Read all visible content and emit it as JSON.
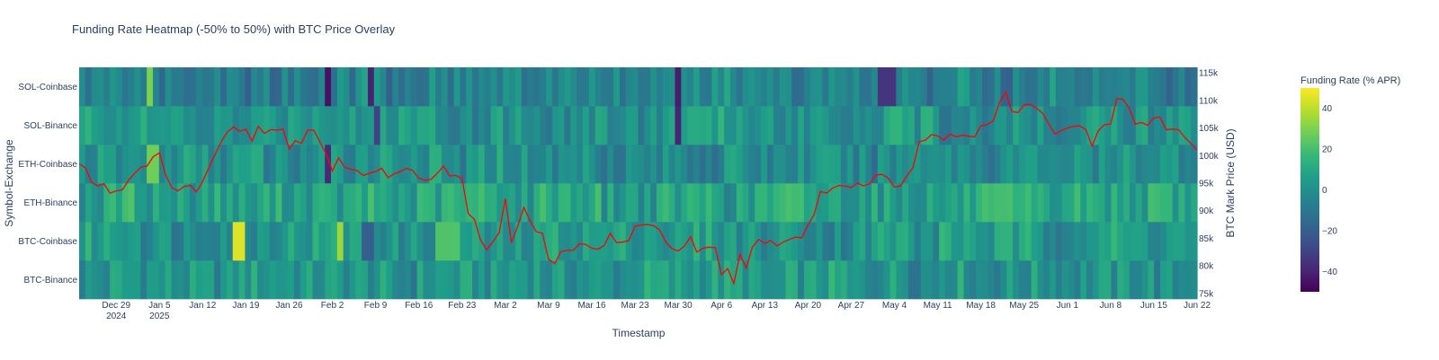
{
  "chart_data": {
    "type": "heatmap",
    "title": "Funding Rate Heatmap (-50% to 50%) with BTC Price Overlay",
    "xlabel": "Timestamp",
    "ylabel": "Symbol-Exchange",
    "y2label": "BTC Mark Price (USD)",
    "x_range": [
      "2024-12-23",
      "2025-06-22"
    ],
    "x_ticks": [
      {
        "date": "2024-12-29",
        "label": "Dec 29",
        "sub": "2024"
      },
      {
        "date": "2025-01-05",
        "label": "Jan 5",
        "sub": "2025"
      },
      {
        "date": "2025-01-12",
        "label": "Jan 12"
      },
      {
        "date": "2025-01-19",
        "label": "Jan 19"
      },
      {
        "date": "2025-01-26",
        "label": "Jan 26"
      },
      {
        "date": "2025-02-02",
        "label": "Feb 2"
      },
      {
        "date": "2025-02-09",
        "label": "Feb 9"
      },
      {
        "date": "2025-02-16",
        "label": "Feb 16"
      },
      {
        "date": "2025-02-23",
        "label": "Feb 23"
      },
      {
        "date": "2025-03-02",
        "label": "Mar 2"
      },
      {
        "date": "2025-03-09",
        "label": "Mar 9"
      },
      {
        "date": "2025-03-16",
        "label": "Mar 16"
      },
      {
        "date": "2025-03-23",
        "label": "Mar 23"
      },
      {
        "date": "2025-03-30",
        "label": "Mar 30"
      },
      {
        "date": "2025-04-06",
        "label": "Apr 6"
      },
      {
        "date": "2025-04-13",
        "label": "Apr 13"
      },
      {
        "date": "2025-04-20",
        "label": "Apr 20"
      },
      {
        "date": "2025-04-27",
        "label": "Apr 27"
      },
      {
        "date": "2025-05-04",
        "label": "May 4"
      },
      {
        "date": "2025-05-11",
        "label": "May 11"
      },
      {
        "date": "2025-05-18",
        "label": "May 18"
      },
      {
        "date": "2025-05-25",
        "label": "May 25"
      },
      {
        "date": "2025-06-01",
        "label": "Jun 1"
      },
      {
        "date": "2025-06-08",
        "label": "Jun 8"
      },
      {
        "date": "2025-06-15",
        "label": "Jun 15"
      },
      {
        "date": "2025-06-22",
        "label": "Jun 22"
      }
    ],
    "rows": [
      "BTC-Binance",
      "BTC-Coinbase",
      "ETH-Binance",
      "ETH-Coinbase",
      "SOL-Binance",
      "SOL-Coinbase"
    ],
    "row_base": [
      2,
      3,
      8,
      0,
      2,
      -6
    ],
    "highlights": [
      {
        "row": "BTC-Coinbase",
        "dates": [
          "2025-01-17",
          "2025-01-18"
        ],
        "value": 45
      },
      {
        "row": "BTC-Coinbase",
        "dates": [
          "2025-02-03"
        ],
        "value": 35
      },
      {
        "row": "BTC-Coinbase",
        "dates": [
          "2025-02-19",
          "2025-02-20",
          "2025-02-21",
          "2025-02-22"
        ],
        "value": 22
      },
      {
        "row": "BTC-Coinbase",
        "dates": [
          "2025-02-07",
          "2025-02-08"
        ],
        "value": -20
      },
      {
        "row": "SOL-Coinbase",
        "dates": [
          "2025-02-01"
        ],
        "value": -45
      },
      {
        "row": "SOL-Coinbase",
        "dates": [
          "2025-02-08"
        ],
        "value": -40
      },
      {
        "row": "SOL-Coinbase",
        "dates": [
          "2025-03-30"
        ],
        "value": -42
      },
      {
        "row": "SOL-Coinbase",
        "dates": [
          "2025-05-02",
          "2025-05-03",
          "2025-05-04"
        ],
        "value": -35
      },
      {
        "row": "SOL-Binance",
        "dates": [
          "2025-03-30"
        ],
        "value": -40
      },
      {
        "row": "SOL-Binance",
        "dates": [
          "2025-02-09"
        ],
        "value": -30
      },
      {
        "row": "ETH-Coinbase",
        "dates": [
          "2025-02-01"
        ],
        "value": -38
      },
      {
        "row": "SOL-Coinbase",
        "dates": [
          "2025-01-03"
        ],
        "value": 30
      },
      {
        "row": "ETH-Coinbase",
        "dates": [
          "2025-01-03",
          "2025-01-04"
        ],
        "value": 28
      }
    ],
    "colorbar": {
      "title": "Funding Rate (% APR)",
      "range": [
        -50,
        50
      ],
      "ticks": [
        40,
        20,
        0,
        -20,
        -40
      ],
      "colorscale": "Viridis"
    },
    "y2_range": [
      74000,
      116000
    ],
    "y2_ticks": [
      {
        "value": 75000,
        "label": "75k"
      },
      {
        "value": 80000,
        "label": "80k"
      },
      {
        "value": 85000,
        "label": "85k"
      },
      {
        "value": 90000,
        "label": "90k"
      },
      {
        "value": 95000,
        "label": "95k"
      },
      {
        "value": 100000,
        "label": "100k"
      },
      {
        "value": 105000,
        "label": "105k"
      },
      {
        "value": 110000,
        "label": "110k"
      },
      {
        "value": 115000,
        "label": "115k"
      }
    ],
    "price_series": {
      "color": "#ff0000",
      "points": [
        [
          "2024-12-23",
          98500
        ],
        [
          "2024-12-24",
          97800
        ],
        [
          "2024-12-25",
          95200
        ],
        [
          "2024-12-26",
          94500
        ],
        [
          "2024-12-27",
          94900
        ],
        [
          "2024-12-28",
          93200
        ],
        [
          "2024-12-29",
          93600
        ],
        [
          "2024-12-30",
          93800
        ],
        [
          "2024-12-31",
          95500
        ],
        [
          "2025-01-01",
          96800
        ],
        [
          "2025-01-02",
          97900
        ],
        [
          "2025-01-03",
          98100
        ],
        [
          "2025-01-04",
          99800
        ],
        [
          "2025-01-05",
          100500
        ],
        [
          "2025-01-06",
          96500
        ],
        [
          "2025-01-07",
          94200
        ],
        [
          "2025-01-08",
          93600
        ],
        [
          "2025-01-09",
          94400
        ],
        [
          "2025-01-10",
          94600
        ],
        [
          "2025-01-11",
          93400
        ],
        [
          "2025-01-12",
          95300
        ],
        [
          "2025-01-13",
          97800
        ],
        [
          "2025-01-14",
          100200
        ],
        [
          "2025-01-15",
          102500
        ],
        [
          "2025-01-16",
          104300
        ],
        [
          "2025-01-17",
          105200
        ],
        [
          "2025-01-18",
          104400
        ],
        [
          "2025-01-19",
          104800
        ],
        [
          "2025-01-20",
          102600
        ],
        [
          "2025-01-21",
          105300
        ],
        [
          "2025-01-22",
          104000
        ],
        [
          "2025-01-23",
          104700
        ],
        [
          "2025-01-24",
          104600
        ],
        [
          "2025-01-25",
          104800
        ],
        [
          "2025-01-26",
          101200
        ],
        [
          "2025-01-27",
          102700
        ],
        [
          "2025-01-28",
          102200
        ],
        [
          "2025-01-29",
          104600
        ],
        [
          "2025-01-30",
          104600
        ],
        [
          "2025-01-31",
          102400
        ],
        [
          "2025-02-01",
          100300
        ],
        [
          "2025-02-02",
          97200
        ],
        [
          "2025-02-03",
          99600
        ],
        [
          "2025-02-04",
          97900
        ],
        [
          "2025-02-05",
          97500
        ],
        [
          "2025-02-06",
          97300
        ],
        [
          "2025-02-07",
          96400
        ],
        [
          "2025-02-08",
          96800
        ],
        [
          "2025-02-09",
          97100
        ],
        [
          "2025-02-10",
          97700
        ],
        [
          "2025-02-11",
          96000
        ],
        [
          "2025-02-12",
          96700
        ],
        [
          "2025-02-13",
          97100
        ],
        [
          "2025-02-14",
          97700
        ],
        [
          "2025-02-15",
          97300
        ],
        [
          "2025-02-16",
          95900
        ],
        [
          "2025-02-17",
          95500
        ],
        [
          "2025-02-18",
          95700
        ],
        [
          "2025-02-19",
          96800
        ],
        [
          "2025-02-20",
          98100
        ],
        [
          "2025-02-21",
          96300
        ],
        [
          "2025-02-22",
          96400
        ],
        [
          "2025-02-23",
          95800
        ],
        [
          "2025-02-24",
          89500
        ],
        [
          "2025-02-25",
          88400
        ],
        [
          "2025-02-26",
          84700
        ],
        [
          "2025-02-27",
          82900
        ],
        [
          "2025-02-28",
          84400
        ],
        [
          "2025-03-01",
          86000
        ],
        [
          "2025-03-02",
          92200
        ],
        [
          "2025-03-03",
          84200
        ],
        [
          "2025-03-04",
          87200
        ],
        [
          "2025-03-05",
          90600
        ],
        [
          "2025-03-06",
          88200
        ],
        [
          "2025-03-07",
          86200
        ],
        [
          "2025-03-08",
          85900
        ],
        [
          "2025-03-09",
          81200
        ],
        [
          "2025-03-10",
          80400
        ],
        [
          "2025-03-11",
          82600
        ],
        [
          "2025-03-12",
          82800
        ],
        [
          "2025-03-13",
          82800
        ],
        [
          "2025-03-14",
          84000
        ],
        [
          "2025-03-15",
          83900
        ],
        [
          "2025-03-16",
          83200
        ],
        [
          "2025-03-17",
          83000
        ],
        [
          "2025-03-18",
          83700
        ],
        [
          "2025-03-19",
          85900
        ],
        [
          "2025-03-20",
          84200
        ],
        [
          "2025-03-21",
          84300
        ],
        [
          "2025-03-22",
          84600
        ],
        [
          "2025-03-23",
          87200
        ],
        [
          "2025-03-24",
          87400
        ],
        [
          "2025-03-25",
          87500
        ],
        [
          "2025-03-26",
          87300
        ],
        [
          "2025-03-27",
          86500
        ],
        [
          "2025-03-28",
          84300
        ],
        [
          "2025-03-29",
          83100
        ],
        [
          "2025-03-30",
          82700
        ],
        [
          "2025-03-31",
          83600
        ],
        [
          "2025-04-01",
          85300
        ],
        [
          "2025-04-02",
          82500
        ],
        [
          "2025-04-03",
          83200
        ],
        [
          "2025-04-04",
          83400
        ],
        [
          "2025-04-05",
          83300
        ],
        [
          "2025-04-06",
          78400
        ],
        [
          "2025-04-07",
          79500
        ],
        [
          "2025-04-08",
          76800
        ],
        [
          "2025-04-09",
          82100
        ],
        [
          "2025-04-10",
          79600
        ],
        [
          "2025-04-11",
          83400
        ],
        [
          "2025-04-12",
          84800
        ],
        [
          "2025-04-13",
          84100
        ],
        [
          "2025-04-14",
          84600
        ],
        [
          "2025-04-15",
          83600
        ],
        [
          "2025-04-16",
          84300
        ],
        [
          "2025-04-17",
          84800
        ],
        [
          "2025-04-18",
          85200
        ],
        [
          "2025-04-19",
          85100
        ],
        [
          "2025-04-20",
          87400
        ],
        [
          "2025-04-21",
          89300
        ],
        [
          "2025-04-22",
          93500
        ],
        [
          "2025-04-23",
          93200
        ],
        [
          "2025-04-24",
          94100
        ],
        [
          "2025-04-25",
          94600
        ],
        [
          "2025-04-26",
          94500
        ],
        [
          "2025-04-27",
          94200
        ],
        [
          "2025-04-28",
          95000
        ],
        [
          "2025-04-29",
          94500
        ],
        [
          "2025-04-30",
          94900
        ],
        [
          "2025-05-01",
          96500
        ],
        [
          "2025-05-02",
          96600
        ],
        [
          "2025-05-03",
          95900
        ],
        [
          "2025-05-04",
          94300
        ],
        [
          "2025-05-05",
          94500
        ],
        [
          "2025-05-06",
          96300
        ],
        [
          "2025-05-07",
          97800
        ],
        [
          "2025-05-08",
          102500
        ],
        [
          "2025-05-09",
          102800
        ],
        [
          "2025-05-10",
          103800
        ],
        [
          "2025-05-11",
          103600
        ],
        [
          "2025-05-12",
          102800
        ],
        [
          "2025-05-13",
          103900
        ],
        [
          "2025-05-14",
          103400
        ],
        [
          "2025-05-15",
          103700
        ],
        [
          "2025-05-16",
          103500
        ],
        [
          "2025-05-17",
          103400
        ],
        [
          "2025-05-18",
          105400
        ],
        [
          "2025-05-19",
          105600
        ],
        [
          "2025-05-20",
          106300
        ],
        [
          "2025-05-21",
          109600
        ],
        [
          "2025-05-22",
          111500
        ],
        [
          "2025-05-23",
          108000
        ],
        [
          "2025-05-24",
          107800
        ],
        [
          "2025-05-25",
          109200
        ],
        [
          "2025-05-26",
          109300
        ],
        [
          "2025-05-27",
          108600
        ],
        [
          "2025-05-28",
          107700
        ],
        [
          "2025-05-29",
          105700
        ],
        [
          "2025-05-30",
          103900
        ],
        [
          "2025-05-31",
          104500
        ],
        [
          "2025-06-01",
          105000
        ],
        [
          "2025-06-02",
          105300
        ],
        [
          "2025-06-03",
          105400
        ],
        [
          "2025-06-04",
          104700
        ],
        [
          "2025-06-05",
          101700
        ],
        [
          "2025-06-06",
          104500
        ],
        [
          "2025-06-07",
          105600
        ],
        [
          "2025-06-08",
          105700
        ],
        [
          "2025-06-09",
          110300
        ],
        [
          "2025-06-10",
          110200
        ],
        [
          "2025-06-11",
          108600
        ],
        [
          "2025-06-12",
          105700
        ],
        [
          "2025-06-13",
          106000
        ],
        [
          "2025-06-14",
          105500
        ],
        [
          "2025-06-15",
          106800
        ],
        [
          "2025-06-16",
          107000
        ],
        [
          "2025-06-17",
          104700
        ],
        [
          "2025-06-18",
          104800
        ],
        [
          "2025-06-19",
          104700
        ],
        [
          "2025-06-20",
          103300
        ],
        [
          "2025-06-21",
          102200
        ],
        [
          "2025-06-22",
          101000
        ]
      ]
    }
  }
}
